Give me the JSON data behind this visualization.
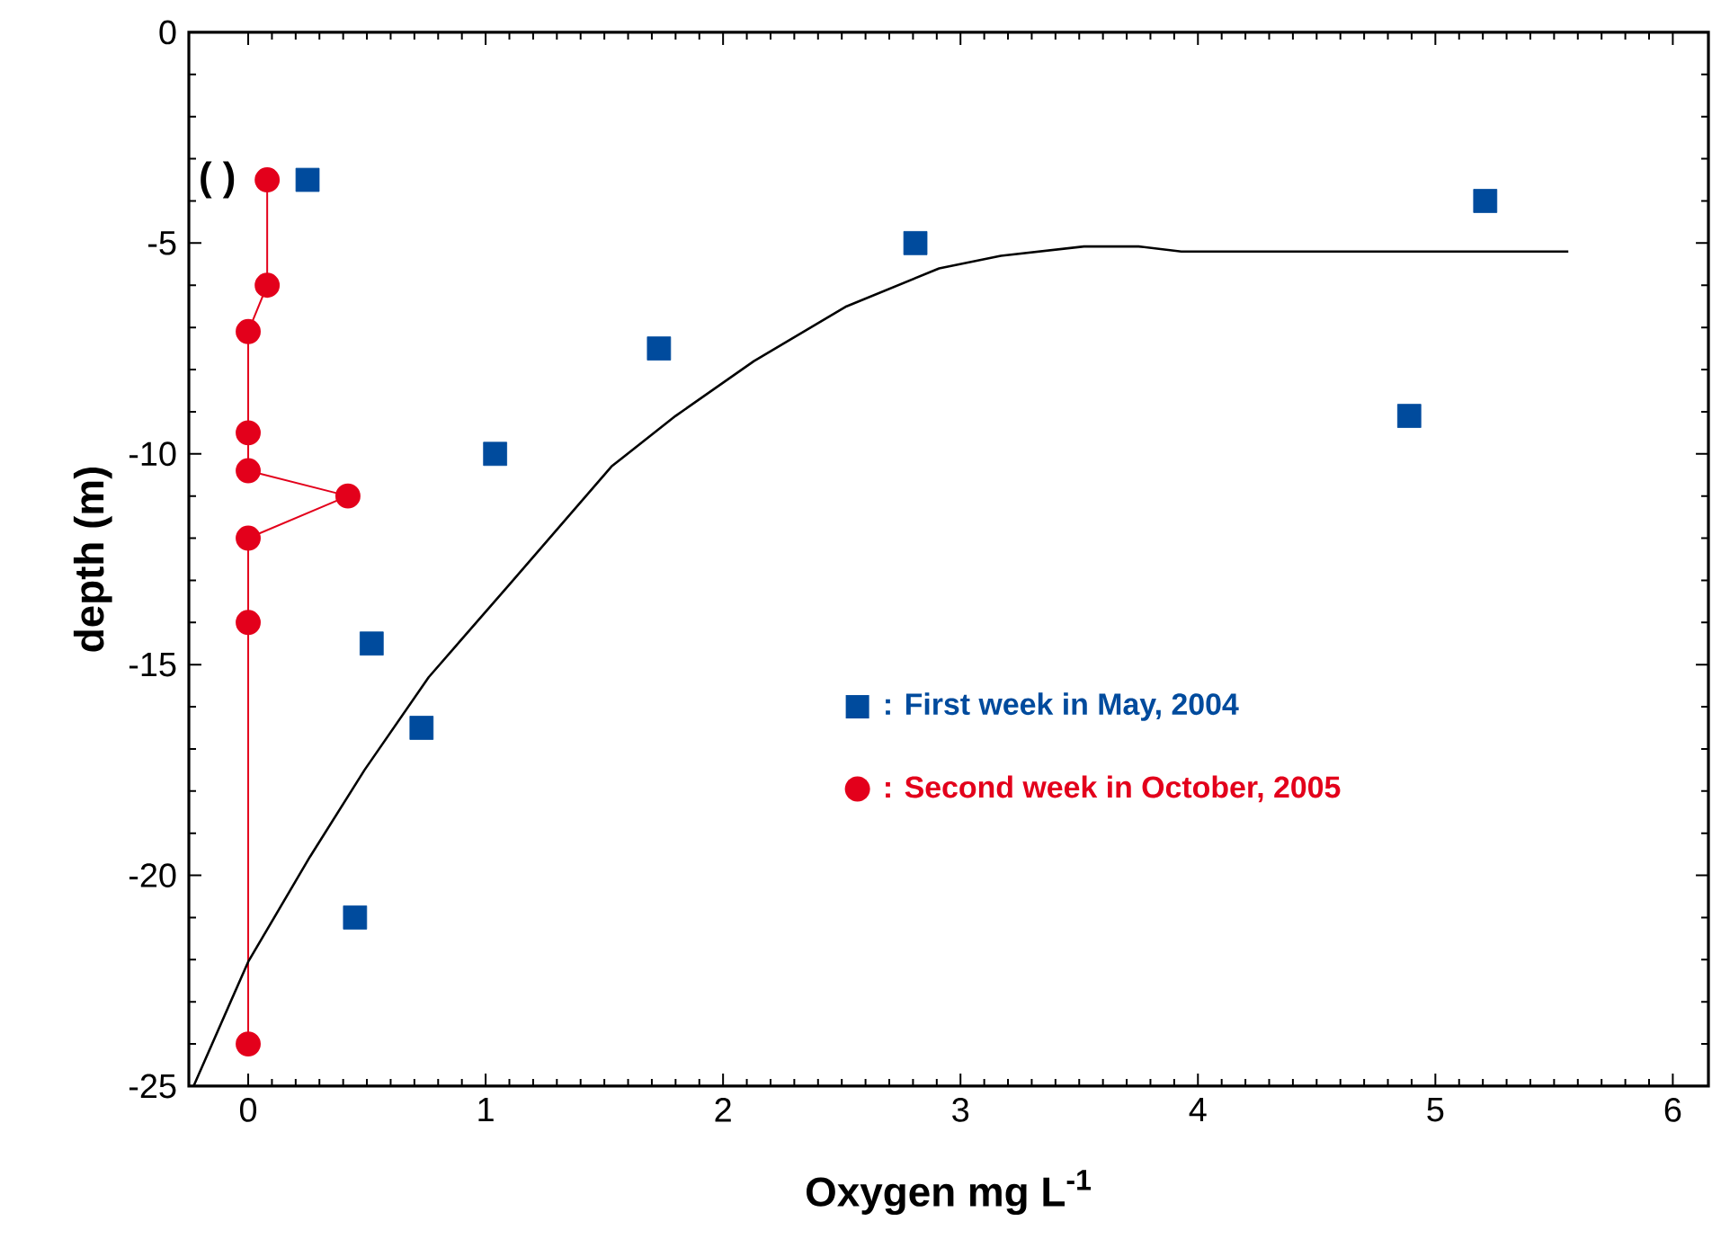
{
  "chart_data": {
    "type": "scatter",
    "xlabel": "Oxygen mg L$^{-1}$",
    "ylabel": "depth (m)",
    "xlim": [
      -0.25,
      6.15
    ],
    "ylim": [
      -25,
      0
    ],
    "xticks": [
      0,
      1,
      2,
      3,
      4,
      5,
      6
    ],
    "yticks": [
      -25,
      -20,
      -15,
      -10,
      -5,
      0
    ],
    "grid": false,
    "legend": "right",
    "annotations": [
      "( )"
    ],
    "series": [
      {
        "name": ": First week in May, 2004",
        "marker": "square",
        "color": "#004b9d",
        "x": [
          0.25,
          5.21,
          2.81,
          1.73,
          4.89,
          1.04,
          0.52,
          0.73,
          0.45
        ],
        "values": [
          -3.5,
          -4,
          -5,
          -7.5,
          -9.1,
          -10,
          -14.5,
          -16.5,
          -21
        ]
      },
      {
        "name": ": Second week in October, 2005",
        "type": "line",
        "marker": "circle",
        "line_style": "solid",
        "color": "#e3001b",
        "x": [
          0.08,
          0.08,
          0,
          0,
          0,
          0.42,
          0,
          0,
          0
        ],
        "values": [
          -3.5,
          -6,
          -7.1,
          -9.5,
          -10.4,
          -11,
          -12,
          -14,
          -24
        ]
      },
      {
        "type": "line",
        "marker": "none",
        "line_style": "solid",
        "color": "#000000",
        "x": [
          -0.23,
          0,
          0.26,
          0.49,
          0.76,
          1.1,
          1.53,
          1.8,
          2.13,
          2.52,
          2.91,
          3.17,
          3.52,
          3.75,
          3.93,
          5.56
        ],
        "values": [
          -25,
          -22.05,
          -19.56,
          -17.5,
          -15.3,
          -13.1,
          -10.3,
          -9.1,
          -7.8,
          -6.5,
          -5.6,
          -5.3,
          -5.08,
          -5.08,
          -5.2,
          -5.2
        ]
      }
    ]
  }
}
